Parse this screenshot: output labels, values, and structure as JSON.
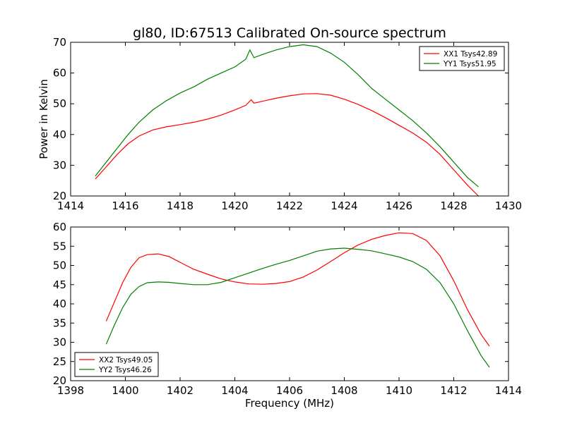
{
  "chart_data": [
    {
      "type": "line",
      "title": "gl80, ID:67513 Calibrated On-source spectrum",
      "xlabel": "",
      "ylabel": "Power in Kelvin",
      "xlim": [
        1414,
        1430
      ],
      "ylim": [
        20,
        70
      ],
      "xticks": [
        1414,
        1416,
        1418,
        1420,
        1422,
        1424,
        1426,
        1428,
        1430
      ],
      "yticks": [
        20,
        30,
        40,
        50,
        60,
        70
      ],
      "legend_position": "top-right",
      "series": [
        {
          "name": "XX1 Tsys42.89",
          "color": "#ff0000",
          "x": [
            1414.9,
            1415.3,
            1415.7,
            1416.1,
            1416.5,
            1417.0,
            1417.5,
            1418.0,
            1418.5,
            1419.0,
            1419.5,
            1420.0,
            1420.4,
            1420.6,
            1420.7,
            1421.0,
            1421.5,
            1422.0,
            1422.5,
            1423.0,
            1423.5,
            1424.0,
            1424.5,
            1425.0,
            1425.5,
            1426.0,
            1426.5,
            1427.0,
            1427.5,
            1428.0,
            1428.5,
            1428.9
          ],
          "y": [
            25.5,
            29.5,
            33.5,
            37.0,
            39.5,
            41.5,
            42.5,
            43.2,
            44.0,
            45.0,
            46.3,
            48.0,
            49.5,
            51.3,
            50.2,
            50.8,
            51.8,
            52.6,
            53.2,
            53.3,
            52.8,
            51.5,
            49.8,
            47.8,
            45.5,
            43.0,
            40.5,
            37.5,
            33.5,
            28.5,
            23.5,
            20.0
          ]
        },
        {
          "name": "YY1 Tsys51.95",
          "color": "#008000",
          "x": [
            1414.9,
            1415.3,
            1415.7,
            1416.1,
            1416.5,
            1417.0,
            1417.5,
            1418.0,
            1418.5,
            1419.0,
            1419.5,
            1420.0,
            1420.4,
            1420.55,
            1420.7,
            1421.0,
            1421.5,
            1422.0,
            1422.5,
            1423.0,
            1423.5,
            1424.0,
            1424.5,
            1425.0,
            1425.5,
            1426.0,
            1426.5,
            1427.0,
            1427.5,
            1428.0,
            1428.5,
            1428.9
          ],
          "y": [
            26.5,
            31.0,
            35.5,
            40.0,
            44.0,
            48.0,
            51.0,
            53.5,
            55.5,
            58.0,
            60.0,
            62.0,
            64.5,
            67.5,
            65.0,
            66.0,
            67.5,
            68.6,
            69.2,
            68.6,
            66.5,
            63.5,
            59.5,
            55.0,
            51.5,
            48.0,
            44.5,
            40.5,
            36.0,
            31.0,
            26.0,
            23.0
          ]
        }
      ]
    },
    {
      "type": "line",
      "title": "",
      "xlabel": "Frequency (MHz)",
      "ylabel": "",
      "xlim": [
        1398,
        1414
      ],
      "ylim": [
        20,
        60
      ],
      "xticks": [
        1398,
        1400,
        1402,
        1404,
        1406,
        1408,
        1410,
        1412,
        1414
      ],
      "yticks": [
        20,
        25,
        30,
        35,
        40,
        45,
        50,
        55,
        60
      ],
      "legend_position": "bottom-left",
      "series": [
        {
          "name": "XX2 Tsys49.05",
          "color": "#ff0000",
          "x": [
            1399.3,
            1399.6,
            1399.9,
            1400.2,
            1400.5,
            1400.8,
            1401.2,
            1401.6,
            1402.0,
            1402.5,
            1403.0,
            1403.5,
            1404.0,
            1404.5,
            1405.0,
            1405.5,
            1406.0,
            1406.5,
            1407.0,
            1407.5,
            1408.0,
            1408.5,
            1409.0,
            1409.5,
            1410.0,
            1410.5,
            1411.0,
            1411.5,
            1412.0,
            1412.5,
            1413.0,
            1413.3
          ],
          "y": [
            35.5,
            40.5,
            45.5,
            49.5,
            52.0,
            52.8,
            53.0,
            52.3,
            50.8,
            49.0,
            47.7,
            46.5,
            45.7,
            45.2,
            45.1,
            45.3,
            45.8,
            47.0,
            48.8,
            51.0,
            53.3,
            55.3,
            56.8,
            57.8,
            58.5,
            58.3,
            56.5,
            52.5,
            46.0,
            38.5,
            32.0,
            29.0
          ]
        },
        {
          "name": "YY2 Tsys46.26",
          "color": "#008000",
          "x": [
            1399.3,
            1399.6,
            1399.9,
            1400.2,
            1400.5,
            1400.8,
            1401.2,
            1401.6,
            1402.0,
            1402.5,
            1403.0,
            1403.5,
            1404.0,
            1404.5,
            1405.0,
            1405.5,
            1406.0,
            1406.5,
            1407.0,
            1407.5,
            1408.0,
            1408.5,
            1409.0,
            1409.5,
            1410.0,
            1410.5,
            1411.0,
            1411.5,
            1412.0,
            1412.5,
            1413.0,
            1413.3
          ],
          "y": [
            29.5,
            34.5,
            39.0,
            42.5,
            44.5,
            45.5,
            45.7,
            45.6,
            45.3,
            45.0,
            45.0,
            45.6,
            46.8,
            48.0,
            49.2,
            50.3,
            51.3,
            52.5,
            53.7,
            54.3,
            54.5,
            54.2,
            53.8,
            53.0,
            52.2,
            51.0,
            49.0,
            45.5,
            40.0,
            33.0,
            26.5,
            23.5
          ]
        }
      ]
    }
  ]
}
